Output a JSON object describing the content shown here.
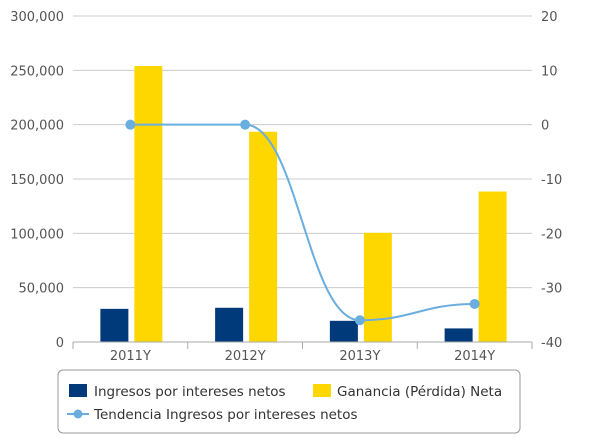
{
  "chart_data": {
    "type": "bar",
    "categories": [
      "2011Y",
      "2012Y",
      "2013Y",
      "2014Y"
    ],
    "series": [
      {
        "name": "Ingresos por intereses netos",
        "type": "bar",
        "axis": "left",
        "color": "#003a7a",
        "values": [
          30500,
          31500,
          19500,
          12500
        ]
      },
      {
        "name": "Ganancia (Pérdida) Neta",
        "type": "bar",
        "axis": "left",
        "color": "#ffd700",
        "values": [
          254000,
          193500,
          100500,
          138500
        ]
      },
      {
        "name": "Tendencia Ingresos por intereses netos",
        "type": "line",
        "axis": "right",
        "color": "#6aaee0",
        "values": [
          0,
          0,
          -36,
          -33
        ]
      }
    ],
    "y_left": {
      "range": [
        0,
        300000
      ],
      "ticks": [
        "0",
        "50,000",
        "100,000",
        "150,000",
        "200,000",
        "250,000",
        "300,000"
      ]
    },
    "y_right": {
      "range": [
        -40,
        20
      ],
      "ticks": [
        "-40",
        "-30",
        "-20",
        "-10",
        "0",
        "10",
        "20"
      ]
    },
    "grid": true,
    "legend_position": "bottom"
  }
}
